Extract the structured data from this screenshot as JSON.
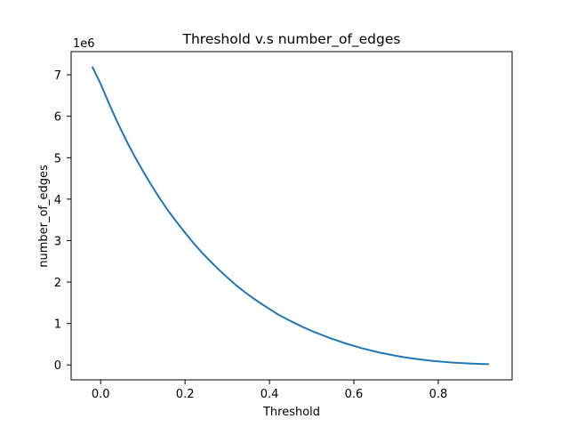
{
  "chart_data": {
    "type": "line",
    "title": "Threshold v.s number_of_edges",
    "xlabel": "Threshold",
    "ylabel": "number_of_edges",
    "y_offset_label": "1e6",
    "y_multiplier": 1000000,
    "xlim": [
      -0.07,
      0.975
    ],
    "ylim": [
      -0.36,
      7.56
    ],
    "x_ticks": [
      0.0,
      0.2,
      0.4,
      0.6,
      0.8
    ],
    "x_tick_labels": [
      "0.0",
      "0.2",
      "0.4",
      "0.6",
      "0.8"
    ],
    "y_ticks": [
      0,
      1,
      2,
      3,
      4,
      5,
      6,
      7
    ],
    "y_tick_labels": [
      "0",
      "1",
      "2",
      "3",
      "4",
      "5",
      "6",
      "7"
    ],
    "grid": false,
    "legend": "none",
    "series": [
      {
        "color": "#1f77b4",
        "x": [
          -0.02,
          0.0,
          0.02,
          0.04,
          0.06,
          0.08,
          0.1,
          0.12,
          0.14,
          0.16,
          0.18,
          0.2,
          0.22,
          0.24,
          0.26,
          0.28,
          0.3,
          0.32,
          0.34,
          0.36,
          0.38,
          0.4,
          0.42,
          0.44,
          0.46,
          0.48,
          0.5,
          0.52,
          0.54,
          0.56,
          0.58,
          0.6,
          0.62,
          0.64,
          0.66,
          0.68,
          0.7,
          0.72,
          0.74,
          0.76,
          0.78,
          0.8,
          0.82,
          0.84,
          0.86,
          0.88,
          0.9,
          0.92
        ],
        "y": [
          7200000,
          6780000,
          6300000,
          5850000,
          5430000,
          5040000,
          4680000,
          4340000,
          4020000,
          3720000,
          3450000,
          3190000,
          2940000,
          2710000,
          2500000,
          2300000,
          2110000,
          1930000,
          1770000,
          1620000,
          1480000,
          1350000,
          1220000,
          1110000,
          1010000,
          910000,
          820000,
          740000,
          660000,
          590000,
          520000,
          460000,
          400000,
          350000,
          300000,
          260000,
          220000,
          185000,
          155000,
          128000,
          105000,
          85000,
          68000,
          54000,
          42000,
          32000,
          24000,
          18000
        ]
      }
    ]
  }
}
